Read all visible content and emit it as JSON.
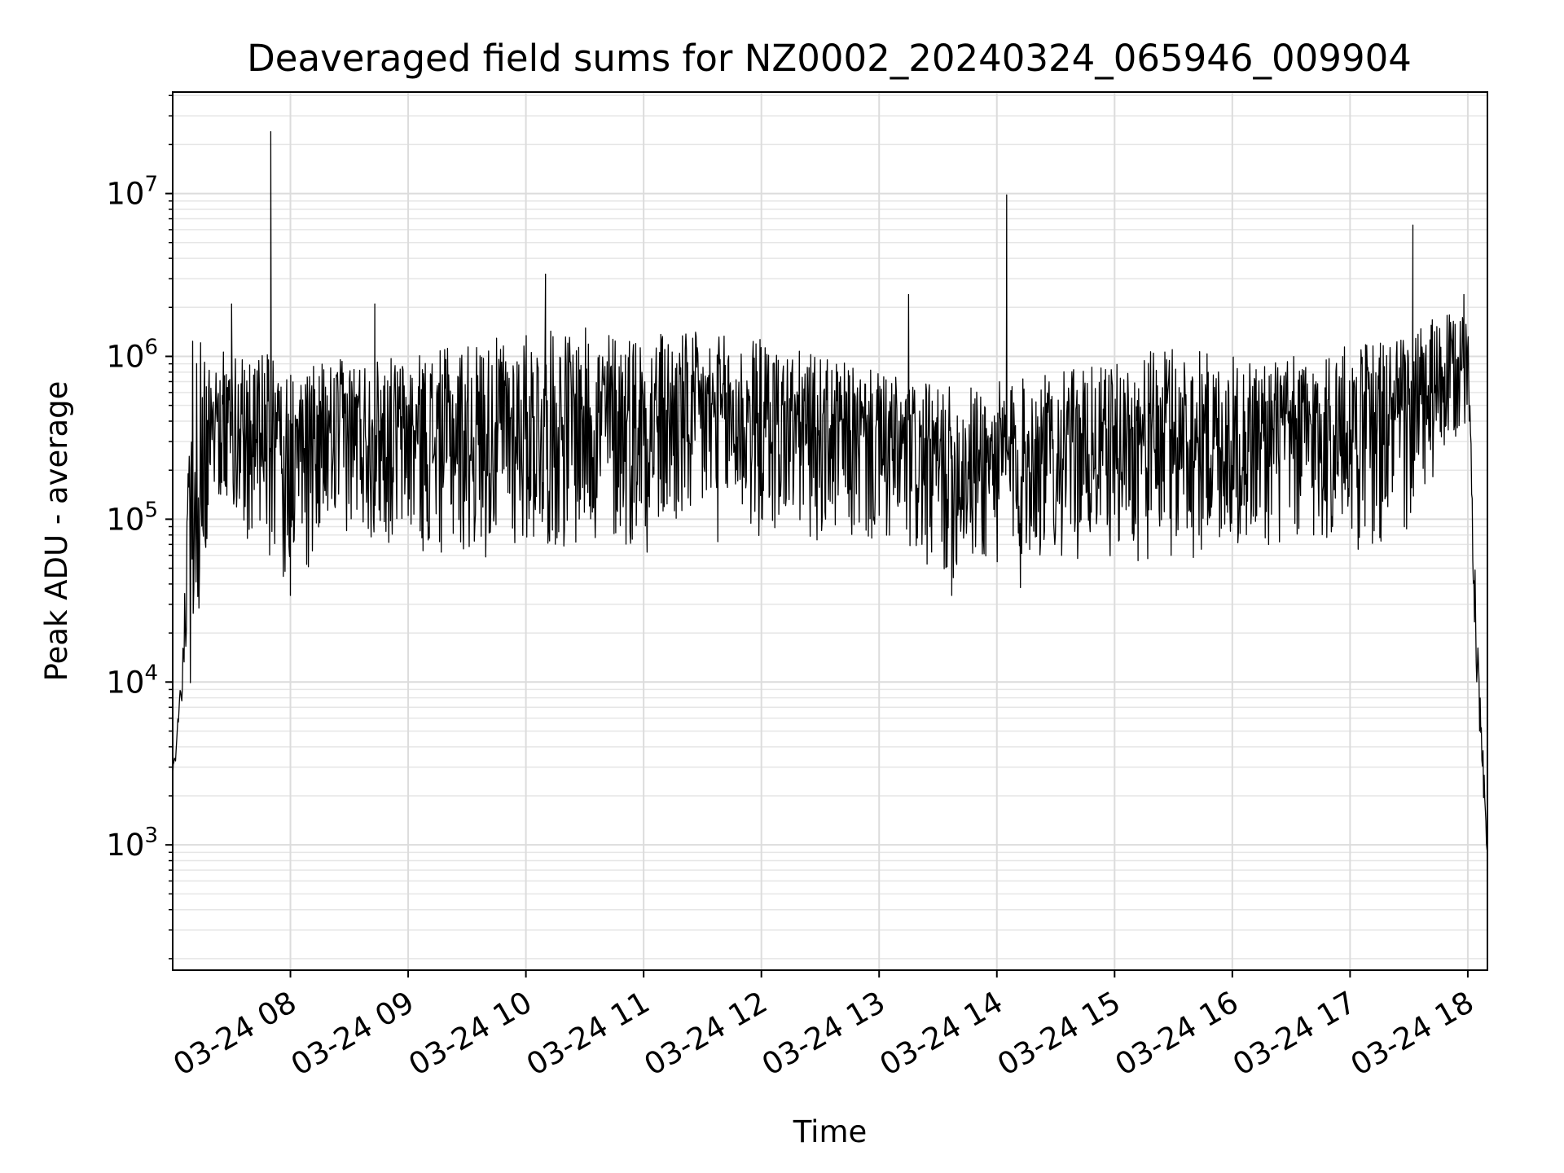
{
  "chart_data": {
    "type": "line",
    "title": "Deaveraged field sums for NZ0002_20240324_065946_009904",
    "xlabel": "Time",
    "ylabel": "Peak ADU - average",
    "yscale": "log",
    "grid": true,
    "ylim": [
      170,
      42000000
    ],
    "xlim": [
      "2024-03-24 07:00",
      "2024-03-24 18:10"
    ],
    "y_ticks": [
      {
        "value": 1000,
        "base": "10",
        "exp": "3"
      },
      {
        "value": 10000,
        "base": "10",
        "exp": "4"
      },
      {
        "value": 100000,
        "base": "10",
        "exp": "5"
      },
      {
        "value": 1000000,
        "base": "10",
        "exp": "6"
      },
      {
        "value": 10000000,
        "base": "10",
        "exp": "7"
      }
    ],
    "x_ticks": [
      {
        "time": "2024-03-24 08:00",
        "label": "03-24 08"
      },
      {
        "time": "2024-03-24 09:00",
        "label": "03-24 09"
      },
      {
        "time": "2024-03-24 10:00",
        "label": "03-24 10"
      },
      {
        "time": "2024-03-24 11:00",
        "label": "03-24 11"
      },
      {
        "time": "2024-03-24 12:00",
        "label": "03-24 12"
      },
      {
        "time": "2024-03-24 13:00",
        "label": "03-24 13"
      },
      {
        "time": "2024-03-24 14:00",
        "label": "03-24 14"
      },
      {
        "time": "2024-03-24 15:00",
        "label": "03-24 15"
      },
      {
        "time": "2024-03-24 16:00",
        "label": "03-24 16"
      },
      {
        "time": "2024-03-24 17:00",
        "label": "03-24 17"
      },
      {
        "time": "2024-03-24 18:00",
        "label": "03-24 18"
      }
    ],
    "series": [
      {
        "color": "#000000",
        "envelope": [
          {
            "time": "2024-03-24 07:00",
            "upper": 3000,
            "lower": 2000
          },
          {
            "time": "2024-03-24 07:05",
            "upper": 13000,
            "lower": 8000
          },
          {
            "time": "2024-03-24 07:10",
            "upper": 1500000,
            "lower": 8000
          },
          {
            "time": "2024-03-24 07:20",
            "upper": 1200000,
            "lower": 130000
          },
          {
            "time": "2024-03-24 07:30",
            "upper": 1000000,
            "lower": 90000
          },
          {
            "time": "2024-03-24 07:45",
            "upper": 1100000,
            "lower": 60000
          },
          {
            "time": "2024-03-24 08:00",
            "upper": 800000,
            "lower": 40000
          },
          {
            "time": "2024-03-24 08:30",
            "upper": 1000000,
            "lower": 80000
          },
          {
            "time": "2024-03-24 09:00",
            "upper": 1000000,
            "lower": 60000
          },
          {
            "time": "2024-03-24 09:30",
            "upper": 1200000,
            "lower": 55000
          },
          {
            "time": "2024-03-24 10:00",
            "upper": 1400000,
            "lower": 60000
          },
          {
            "time": "2024-03-24 10:30",
            "upper": 1500000,
            "lower": 60000
          },
          {
            "time": "2024-03-24 11:00",
            "upper": 1500000,
            "lower": 60000
          },
          {
            "time": "2024-03-24 11:30",
            "upper": 1400000,
            "lower": 70000
          },
          {
            "time": "2024-03-24 12:00",
            "upper": 1300000,
            "lower": 70000
          },
          {
            "time": "2024-03-24 12:30",
            "upper": 1000000,
            "lower": 70000
          },
          {
            "time": "2024-03-24 13:00",
            "upper": 800000,
            "lower": 60000
          },
          {
            "time": "2024-03-24 13:30",
            "upper": 650000,
            "lower": 40000
          },
          {
            "time": "2024-03-24 14:00",
            "upper": 700000,
            "lower": 45000
          },
          {
            "time": "2024-03-24 14:30",
            "upper": 800000,
            "lower": 55000
          },
          {
            "time": "2024-03-24 15:00",
            "upper": 900000,
            "lower": 55000
          },
          {
            "time": "2024-03-24 15:30",
            "upper": 1200000,
            "lower": 50000
          },
          {
            "time": "2024-03-24 16:00",
            "upper": 1000000,
            "lower": 60000
          },
          {
            "time": "2024-03-24 16:30",
            "upper": 1000000,
            "lower": 60000
          },
          {
            "time": "2024-03-24 17:00",
            "upper": 1200000,
            "lower": 60000
          },
          {
            "time": "2024-03-24 17:30",
            "upper": 1400000,
            "lower": 70000
          },
          {
            "time": "2024-03-24 17:45",
            "upper": 1800000,
            "lower": 150000
          },
          {
            "time": "2024-03-24 18:00",
            "upper": 1800000,
            "lower": 400000
          },
          {
            "time": "2024-03-24 18:05",
            "upper": 20000,
            "lower": 6000
          },
          {
            "time": "2024-03-24 18:10",
            "upper": 1000,
            "lower": 800
          }
        ],
        "spikes": [
          {
            "time": "2024-03-24 07:50",
            "value": 24000000
          },
          {
            "time": "2024-03-24 07:30",
            "value": 2100000
          },
          {
            "time": "2024-03-24 08:43",
            "value": 2100000
          },
          {
            "time": "2024-03-24 10:10",
            "value": 3200000
          },
          {
            "time": "2024-03-24 13:15",
            "value": 2400000
          },
          {
            "time": "2024-03-24 14:05",
            "value": 9800000
          },
          {
            "time": "2024-03-24 17:32",
            "value": 6400000
          },
          {
            "time": "2024-03-24 17:58",
            "value": 2400000
          }
        ],
        "dips": [
          {
            "time": "2024-03-24 08:00",
            "value": 34000
          },
          {
            "time": "2024-03-24 13:37",
            "value": 34000
          },
          {
            "time": "2024-03-24 14:12",
            "value": 38000
          }
        ]
      }
    ]
  }
}
